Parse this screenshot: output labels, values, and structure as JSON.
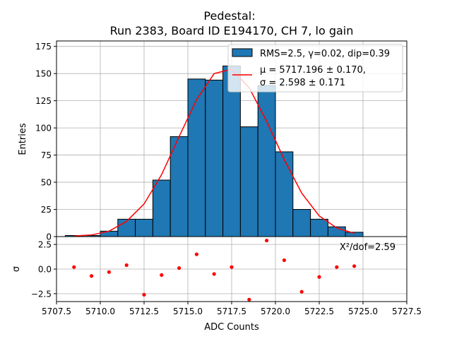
{
  "chart_data": {
    "type": "bar",
    "title_line1": "Pedestal:",
    "title_line2": "Run 2383, Board ID E194170, CH 7, lo gain",
    "xlabel": "ADC Counts",
    "ylabel_top": "Entries",
    "ylabel_bottom": "σ",
    "xlim": [
      5707.5,
      5727.5
    ],
    "ylim_top": [
      0,
      180
    ],
    "ylim_bottom": [
      -3.3,
      3.3
    ],
    "x_ticks": [
      5707.5,
      5710.0,
      5712.5,
      5715.0,
      5717.5,
      5720.0,
      5722.5,
      5725.0,
      5727.5
    ],
    "x_tick_labels": [
      "5707.5",
      "5710.0",
      "5712.5",
      "5715.0",
      "5717.5",
      "5720.0",
      "5722.5",
      "5725.0",
      "5727.5"
    ],
    "y_ticks_top": [
      0,
      25,
      50,
      75,
      100,
      125,
      150,
      175
    ],
    "y_tick_labels_top": [
      "0",
      "25",
      "50",
      "75",
      "100",
      "125",
      "150",
      "175"
    ],
    "y_ticks_bottom": [
      -2.5,
      0.0,
      2.5
    ],
    "y_tick_labels_bottom": [
      "−2.5",
      "0.0",
      "2.5"
    ],
    "histogram": {
      "bin_edges": [
        5708,
        5709,
        5710,
        5711,
        5712,
        5713,
        5714,
        5715,
        5716,
        5717,
        5718,
        5719,
        5720,
        5721,
        5722,
        5723,
        5724,
        5725
      ],
      "counts": [
        1,
        1,
        5,
        16,
        16,
        52,
        92,
        145,
        144,
        157,
        101,
        139,
        78,
        25,
        16,
        9,
        4
      ],
      "color": "#1f77b4",
      "legend_label": "RMS=2.5, γ=0.02, dip=0.39"
    },
    "fit": {
      "x": [
        5708.5,
        5709.5,
        5710.5,
        5711.5,
        5712.5,
        5713.5,
        5714.5,
        5715.5,
        5716.5,
        5717.5,
        5718.5,
        5719.5,
        5720.5,
        5721.5,
        5722.5,
        5723.5,
        5724.5
      ],
      "y": [
        0.5,
        1.5,
        5,
        14,
        30,
        57,
        92,
        126,
        150,
        154,
        137,
        106,
        71,
        40,
        19,
        8,
        3
      ],
      "color": "#ff0000",
      "legend_line1": "μ = 5717.196 ± 0.170,",
      "legend_line2": "σ = 2.598 ± 0.171"
    },
    "residuals": {
      "x": [
        5708.5,
        5709.5,
        5710.5,
        5711.5,
        5712.5,
        5713.5,
        5714.5,
        5715.5,
        5716.5,
        5717.5,
        5718.5,
        5719.5,
        5720.5,
        5721.5,
        5722.5,
        5723.5,
        5724.5
      ],
      "y": [
        0.2,
        -0.7,
        -0.3,
        0.4,
        -2.6,
        -0.6,
        0.1,
        1.5,
        -0.5,
        0.2,
        -3.1,
        2.9,
        0.9,
        -2.3,
        -0.8,
        0.2,
        0.3
      ],
      "color": "#ff0000"
    },
    "chi2_label": "X²/dof=2.59",
    "grid": true,
    "legend_position": "top-right"
  }
}
